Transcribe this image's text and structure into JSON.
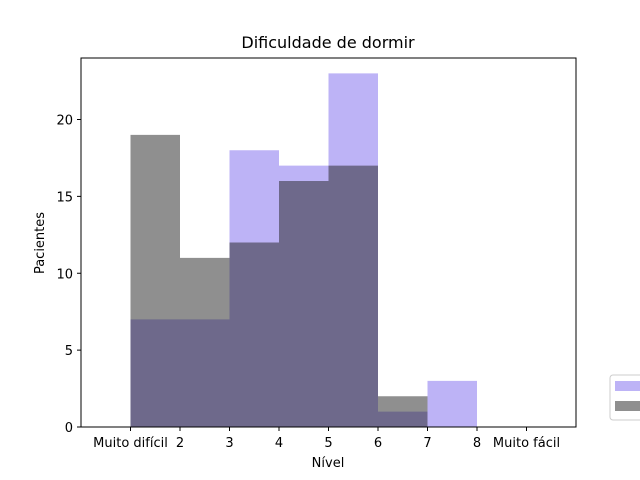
{
  "chart_data": {
    "type": "bar",
    "title": "Dificuldade de dormir",
    "xlabel": "Nível",
    "ylabel": "Pacientes",
    "xlim": [
      0,
      10
    ],
    "ylim": [
      0,
      24
    ],
    "x_ticks": [
      {
        "value": 1,
        "label": "Muito difícil"
      },
      {
        "value": 2,
        "label": "2"
      },
      {
        "value": 3,
        "label": "3"
      },
      {
        "value": 4,
        "label": "4"
      },
      {
        "value": 5,
        "label": "5"
      },
      {
        "value": 6,
        "label": "6"
      },
      {
        "value": 7,
        "label": "7"
      },
      {
        "value": 8,
        "label": "8"
      },
      {
        "value": 9,
        "label": "Muito fácil"
      }
    ],
    "y_ticks": [
      0,
      5,
      10,
      15,
      20
    ],
    "bin_edges": [
      1,
      2,
      3,
      4,
      5,
      6,
      7,
      8
    ],
    "series": [
      {
        "color": "#7b68ee",
        "opacity": 0.5,
        "values": [
          7,
          7,
          18,
          17,
          23,
          1,
          3
        ]
      },
      {
        "color": "#1f1f1f",
        "opacity": 0.5,
        "values": [
          19,
          11,
          12,
          16,
          17,
          2,
          0
        ]
      }
    ],
    "legend": {
      "position": "right",
      "entries": [
        "",
        ""
      ]
    },
    "grid": false
  }
}
